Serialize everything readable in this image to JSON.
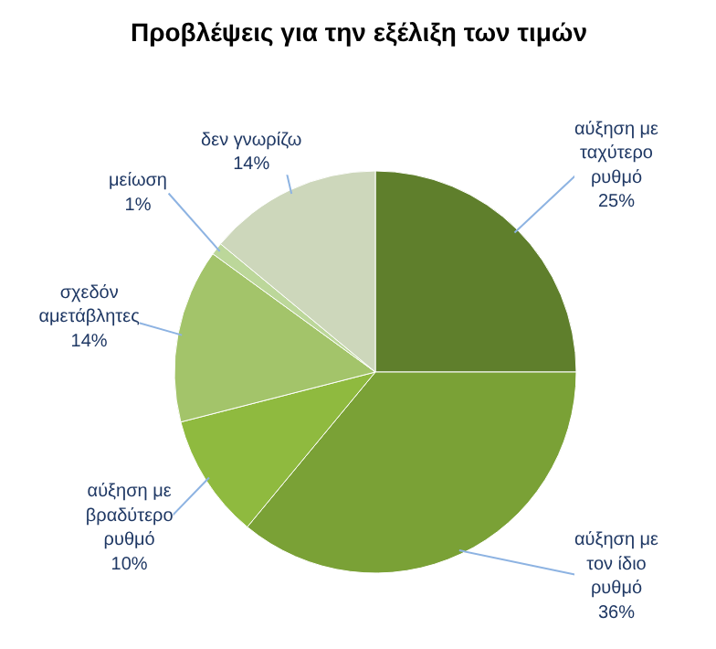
{
  "chart_data": {
    "type": "pie",
    "title": "Προβλέψεις για την εξέλιξη των τιμών",
    "categories": [
      "αύξηση με ταχύτερο ρυθμό",
      "αύξηση με τον ίδιο ρυθμό",
      "αύξηση με βραδύτερο ρυθμό",
      "σχεδόν αμετάβλητες",
      "μείωση",
      "δεν γνωρίζω"
    ],
    "values": [
      25,
      36,
      10,
      14,
      1,
      14
    ],
    "value_labels": [
      "25%",
      "36%",
      "10%",
      "14%",
      "1%",
      "14%"
    ],
    "colors": [
      "#5f7f2c",
      "#7aa136",
      "#8fba3f",
      "#a3c46a",
      "#bcd79a",
      "#cdd7bb"
    ]
  }
}
